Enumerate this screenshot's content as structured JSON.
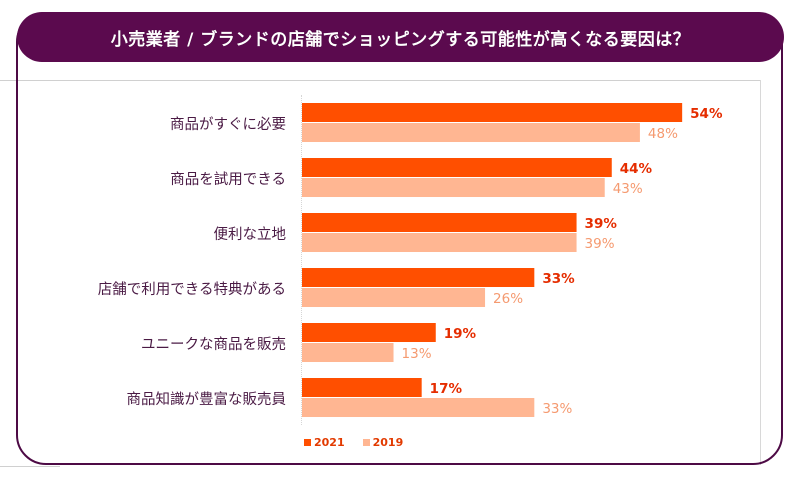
{
  "chart_data": {
    "type": "bar",
    "orientation": "horizontal",
    "title": "小売業者 / ブランドの店舗でショッピングする可能性が高くなる要因は？",
    "xlabel": "",
    "ylabel": "",
    "xlim": [
      0,
      60
    ],
    "grid": false,
    "legend_position": "bottom-left",
    "categories": [
      "商品がすぐに必要",
      "商品を試用できる",
      "便利な立地",
      "店舗で利用できる特典がある",
      "ユニークな商品を販売",
      "商品知識が豊富な販売員"
    ],
    "series": [
      {
        "name": "2021",
        "color": "#ff4f00",
        "label_color": "#e52d00",
        "values": [
          54,
          44,
          39,
          33,
          19,
          17
        ],
        "labels": [
          "54%",
          "44%",
          "39%",
          "33%",
          "19%",
          "17%"
        ]
      },
      {
        "name": "2019",
        "color": "#ffb692",
        "label_color": "#f59a70",
        "values": [
          48,
          43,
          39,
          26,
          13,
          33
        ],
        "labels": [
          "48%",
          "43%",
          "39%",
          "26%",
          "13%",
          "33%"
        ]
      }
    ]
  },
  "colors": {
    "title_bar": "#5b0a4e",
    "frame": "#4d0a45",
    "category_text": "#4a1a44"
  }
}
